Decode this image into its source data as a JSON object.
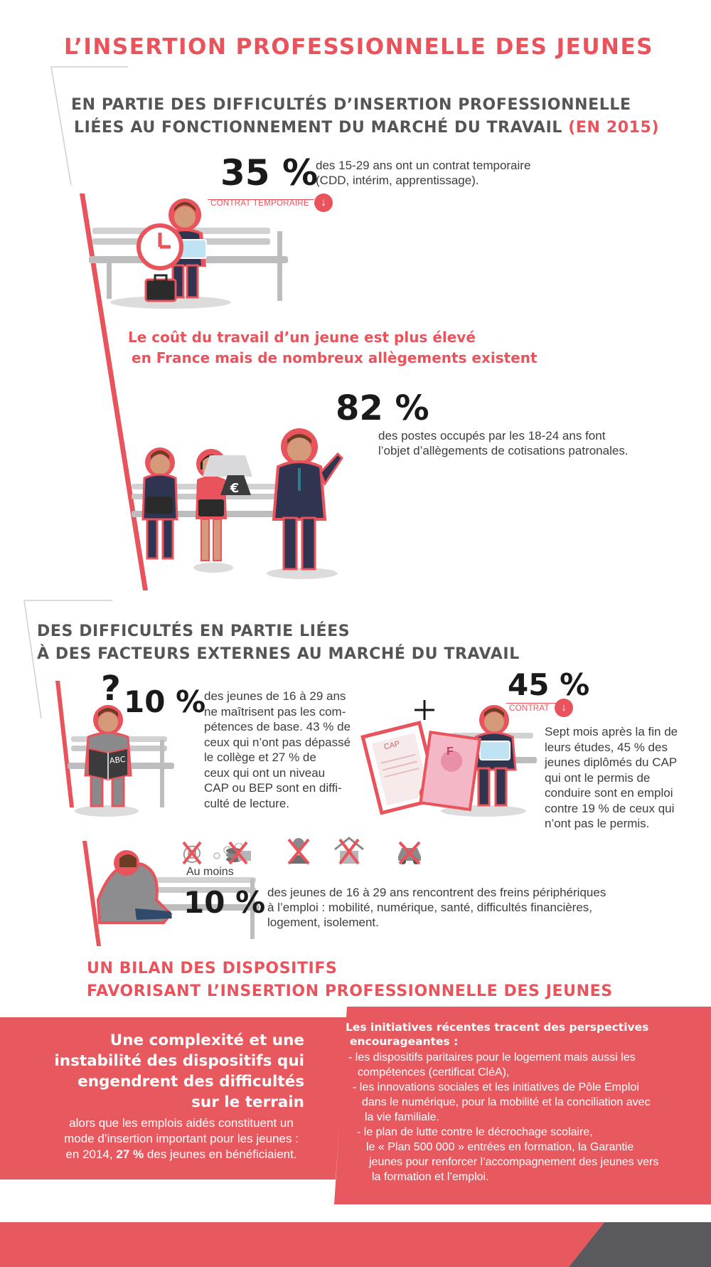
{
  "title": "L’INSERTION PROFESSIONNELLE DES JEUNES",
  "section1": {
    "heading_line1": "EN PARTIE DES DIFFICULTÉS D’INSERTION PROFESSIONNELLE",
    "heading_line2": "LIÉES AU FONCTIONNEMENT DU MARCHÉ DU TRAVAIL",
    "heading_year": "(EN 2015)",
    "stat1": {
      "value": "35 %",
      "line1": "des 15-29 ans ont un contrat temporaire",
      "line2": "(CDD, intérim, apprentissage).",
      "tag": "CONTRAT TEMPORAIRE"
    },
    "subheading_line1": "Le coût du travail d’un jeune est plus élevé",
    "subheading_line2": "en France mais de nombreux allègements existent",
    "stat2": {
      "value": "82 %",
      "line1": "des postes occupés par les 18-24 ans font",
      "line2": "l’objet d’allègements de cotisations patronales."
    }
  },
  "section2": {
    "heading_line1": "DES DIFFICULTÉS EN PARTIE LIÉES",
    "heading_line2": "À DES FACTEURS EXTERNES AU MARCHÉ DU TRAVAIL",
    "stat3": {
      "value": "10 %",
      "lines": [
        "des jeunes de 16 à 29 ans",
        "ne maîtrisent pas les com-",
        "pétences de base. 43 % de",
        "ceux qui n’ont pas dépassé",
        "le collège et 27 % de",
        "ceux qui ont un niveau",
        "CAP ou BEP sont en diffi-",
        "culté de lecture."
      ],
      "book_label": "ABC"
    },
    "stat4": {
      "value": "45 %",
      "tag": "CONTRAT",
      "lines": [
        "Sept mois après la fin de",
        "leurs études, 45 % des",
        "jeunes diplômés du CAP",
        "qui ont le permis de",
        "conduire sont en emploi",
        "contre 19 % de ceux qui",
        "n’ont pas le permis."
      ],
      "doc_label": "CAP",
      "permit_letter": "F"
    },
    "stat5": {
      "prefix": "Au moins",
      "value": "10 %",
      "line1": "des jeunes de 16 à 29 ans rencontrent des freins périphériques",
      "line2": "à l’emploi : mobilité, numérique, santé, difficultés financières,",
      "line3": "logement, isolement."
    }
  },
  "section3": {
    "heading_line1": "UN BILAN DES DISPOSITIFS",
    "heading_line2": "FAVORISANT L’INSERTION PROFESSIONNELLE DES JEUNES",
    "left": {
      "title_lines": [
        "Une complexité et une",
        "instabilité des dispositifs qui",
        "engendrent des difficultés",
        "sur le terrain"
      ],
      "body_line1": "alors que les emplois aidés constituent un",
      "body_line2": "mode d’insertion important pour les jeunes :",
      "body_line3_pre": "en 2014,",
      "body_line3_bold": "27 %",
      "body_line3_post": "des jeunes en bénéficiaient."
    },
    "right": {
      "intro_line1": "Les initiatives récentes tracent des perspectives",
      "intro_line2": "encourageantes :",
      "items": [
        [
          "- les dispositifs paritaires pour le logement mais aussi les",
          "compétences (certificat CléA),"
        ],
        [
          "- les innovations sociales et les initiatives de Pôle Emploi",
          "dans le numérique, pour la mobilité et la conciliation avec",
          "la vie familiale."
        ],
        [
          "- le plan de lutte contre le décrochage scolaire,",
          "le « Plan 500 000 » entrées en formation, la Garantie",
          "jeunes pour renforcer l’accompagnement des jeunes vers",
          "la formation et l’emploi."
        ]
      ]
    }
  },
  "colors": {
    "accent": "#e8535c",
    "heading": "#555459",
    "footer_dark": "#5a5a5e"
  },
  "icons": [
    "clock-icon",
    "briefcase-icon",
    "download-icon",
    "euro-weight-icon",
    "question-mark-icon",
    "book-icon",
    "plus-icon",
    "certificate-icon",
    "driving-permit-icon",
    "at-sign-crossed-icon",
    "money-crossed-icon",
    "health-crossed-icon",
    "house-crossed-icon",
    "car-crossed-icon"
  ]
}
